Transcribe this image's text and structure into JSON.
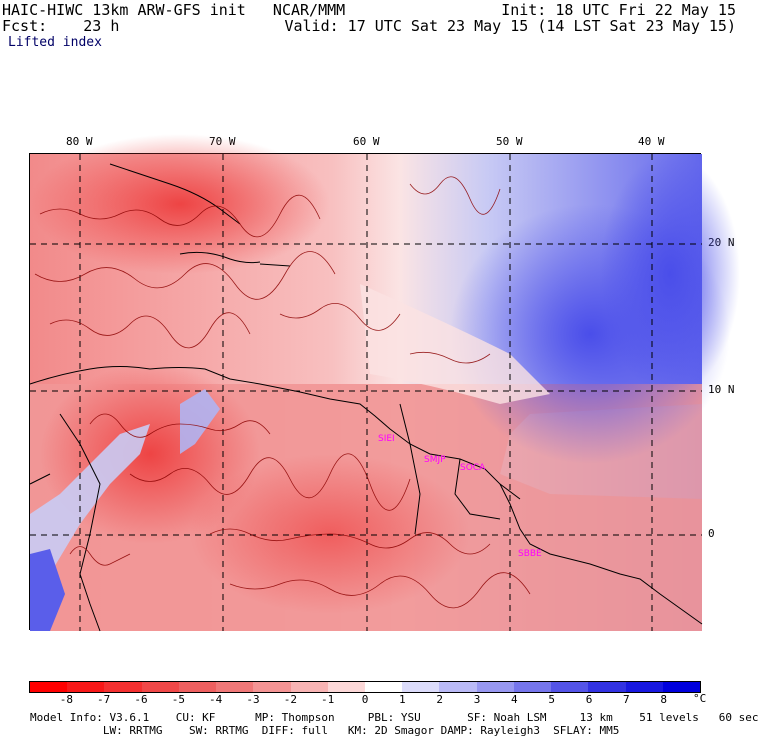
{
  "header": {
    "title_left": "HAIC-HIWC 13km ARW-GFS init   NCAR/MMM",
    "title_right": "Init: 18 UTC Fri 22 May 15",
    "fcst_left": "Fcst:    23 h",
    "valid_right": "Valid: 17 UTC Sat 23 May 15 (14 LST Sat 23 May 15)",
    "field": "Lifted index"
  },
  "map": {
    "lon_labels": [
      "80 W",
      "70 W",
      "60 W",
      "50 W",
      "40 W"
    ],
    "lat_labels": [
      "20 N",
      "10 N",
      "0"
    ],
    "stations": [
      "SIEI",
      "SMJP",
      "SOCA",
      "SBBE"
    ],
    "colors": {
      "strong_red": "#ee3b3b",
      "mid_red": "#f27f7f",
      "light_red": "#f9c6c6",
      "white": "#ffffff",
      "light_blue": "#c6c9f5",
      "mid_blue": "#7b7ff0",
      "strong_blue": "#3b3bee",
      "contour": "#8b0000",
      "coast": "#000000"
    }
  },
  "colorbar": {
    "tick_labels": [
      "-8",
      "-7",
      "-6",
      "-5",
      "-4",
      "-3",
      "-2",
      "-1",
      "0",
      "1",
      "2",
      "3",
      "4",
      "5",
      "6",
      "7",
      "8"
    ],
    "unit": "°C",
    "colors": [
      "#ff0000",
      "#f81818",
      "#f43030",
      "#f04848",
      "#ee6060",
      "#f07878",
      "#f49494",
      "#f8b4b4",
      "#fcd8d8",
      "#ffffff",
      "#dcdcfb",
      "#babaf6",
      "#9898f1",
      "#7676ec",
      "#5454e7",
      "#3232e2",
      "#1818e0",
      "#0000dd"
    ]
  },
  "footer": {
    "line1": "Model Info: V3.6.1    CU: KF      MP: Thompson     PBL: YSU       SF: Noah LSM     13 km    51 levels   60 sec",
    "line2": "           LW: RRTMG    SW: RRTMG  DIFF: full   KM: 2D Smagor DAMP: Rayleigh3  SFLAY: MM5"
  }
}
